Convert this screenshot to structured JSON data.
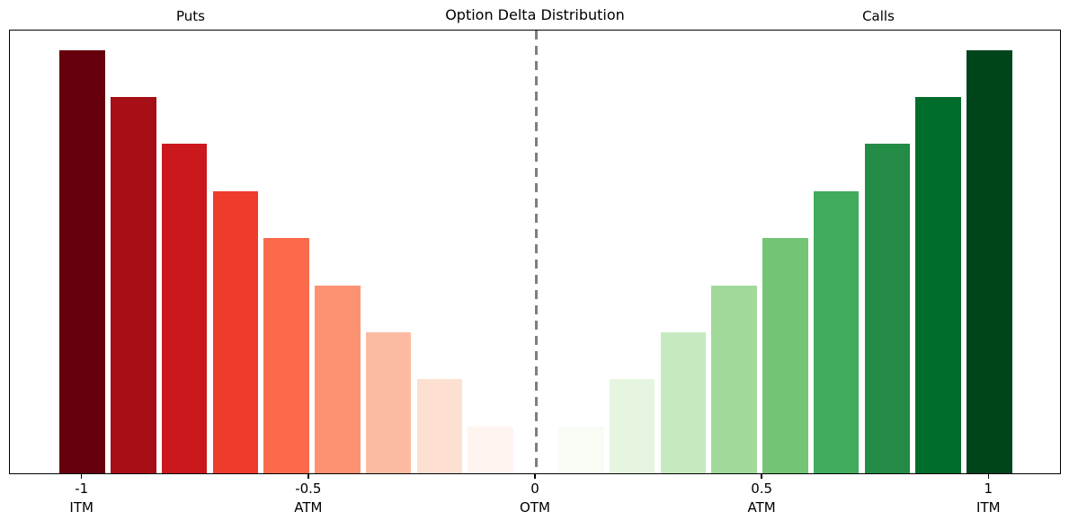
{
  "title": "Option Delta Distribution",
  "chart_data": {
    "type": "bar",
    "title": "Option Delta Distribution",
    "xlabel": "",
    "ylabel": "",
    "xlim": [
      -1.16,
      1.16
    ],
    "ylim": [
      0,
      1.05
    ],
    "bar_width": 0.1,
    "grid": false,
    "legend": "none",
    "zero_line": {
      "x": 0,
      "style": "dashed",
      "color": "#7f7f7f"
    },
    "annotations": {
      "left": {
        "text": "Puts",
        "x": -0.76
      },
      "right": {
        "text": "Calls",
        "x": 0.76
      }
    },
    "x_ticks": [
      {
        "x": -1,
        "label": "-1",
        "sublabel": "ITM"
      },
      {
        "x": -0.5,
        "label": "-0.5",
        "sublabel": "ATM"
      },
      {
        "x": 0,
        "label": "0",
        "sublabel": "OTM"
      },
      {
        "x": 0.5,
        "label": "0.5",
        "sublabel": "ATM"
      },
      {
        "x": 1,
        "label": "1",
        "sublabel": "ITM"
      }
    ],
    "series": [
      {
        "name": "Puts",
        "colormap": "Reds",
        "x": [
          -1.0,
          -0.8875,
          -0.775,
          -0.6625,
          -0.55,
          -0.4375,
          -0.325,
          -0.2125,
          -0.1
        ],
        "values": [
          1.0,
          0.889,
          0.778,
          0.667,
          0.556,
          0.444,
          0.333,
          0.222,
          0.111
        ],
        "colors": [
          "#67000d",
          "#a50f15",
          "#cb181d",
          "#ef3b2c",
          "#fb6a4a",
          "#fc9272",
          "#fcbba1",
          "#fee0d2",
          "#fff5f0"
        ]
      },
      {
        "name": "Calls",
        "colormap": "Greens",
        "x": [
          0.1,
          0.2125,
          0.325,
          0.4375,
          0.55,
          0.6625,
          0.775,
          0.8875,
          1.0
        ],
        "values": [
          0.111,
          0.222,
          0.333,
          0.444,
          0.556,
          0.667,
          0.778,
          0.889,
          1.0
        ],
        "colors": [
          "#f7fcf5",
          "#e5f5e0",
          "#c7e9c0",
          "#a1d99b",
          "#74c476",
          "#41ab5d",
          "#238b45",
          "#006d2c",
          "#00441b"
        ]
      }
    ]
  }
}
